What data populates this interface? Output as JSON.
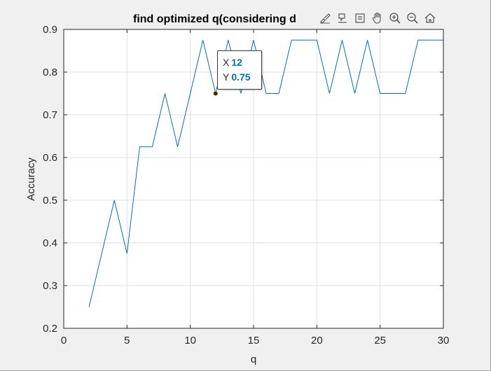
{
  "figure": {
    "title": "find optimized q(considering d",
    "toolbar_icons": [
      "brush-icon",
      "data-tips-icon",
      "rotate-icon",
      "pan-icon",
      "zoom-in-icon",
      "zoom-out-icon",
      "home-icon"
    ]
  },
  "datatip": {
    "x_label": "X",
    "x_value": "12",
    "y_label": "Y",
    "y_value": "0.75"
  },
  "chart_data": {
    "type": "line",
    "title": "find optimized q(considering d",
    "xlabel": "q",
    "ylabel": "Accuracy",
    "xlim": [
      0,
      30
    ],
    "ylim": [
      0.2,
      0.9
    ],
    "xticks": [
      0,
      5,
      10,
      15,
      20,
      25,
      30
    ],
    "yticks": [
      0.2,
      0.3,
      0.4,
      0.5,
      0.6,
      0.7,
      0.8,
      0.9
    ],
    "xtick_labels": [
      "0",
      "5",
      "10",
      "15",
      "20",
      "25",
      "30"
    ],
    "ytick_labels": [
      "0.2",
      "0.3",
      "0.4",
      "0.5",
      "0.6",
      "0.7",
      "0.8",
      "0.9"
    ],
    "grid": true,
    "line_color": "#0072bd",
    "x": [
      2,
      3,
      4,
      5,
      6,
      7,
      8,
      9,
      10,
      11,
      12,
      13,
      14,
      15,
      16,
      17,
      18,
      19,
      20,
      21,
      22,
      23,
      24,
      25,
      26,
      27,
      28,
      29,
      30
    ],
    "y": [
      0.25,
      0.375,
      0.5,
      0.375,
      0.625,
      0.625,
      0.75,
      0.625,
      0.75,
      0.875,
      0.75,
      0.875,
      0.75,
      0.875,
      0.75,
      0.75,
      0.875,
      0.875,
      0.875,
      0.75,
      0.875,
      0.75,
      0.875,
      0.75,
      0.75,
      0.75,
      0.875,
      0.875,
      0.875
    ],
    "highlight": {
      "x": 12,
      "y": 0.75
    }
  }
}
